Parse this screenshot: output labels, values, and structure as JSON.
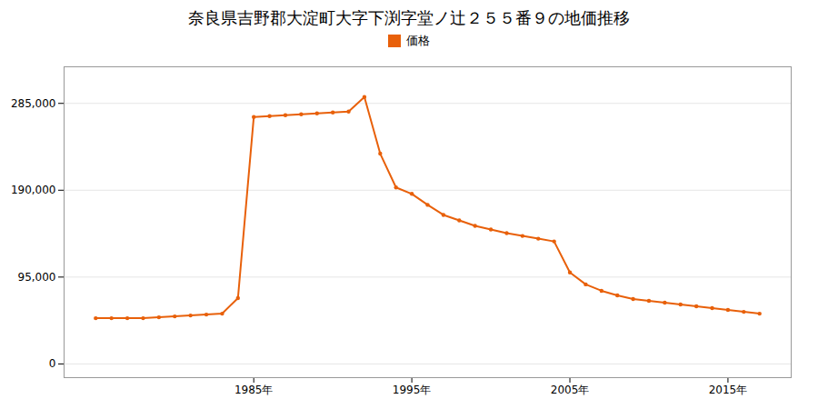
{
  "chart_data": {
    "type": "line",
    "title": "奈良県吉野郡大淀町大字下渕字堂ノ辻２５５番９の地価推移",
    "x": [
      1975,
      1976,
      1977,
      1978,
      1979,
      1980,
      1981,
      1982,
      1983,
      1984,
      1985,
      1986,
      1987,
      1988,
      1989,
      1990,
      1991,
      1992,
      1993,
      1994,
      1995,
      1996,
      1997,
      1998,
      1999,
      2000,
      2001,
      2002,
      2003,
      2004,
      2005,
      2006,
      2007,
      2008,
      2009,
      2010,
      2011,
      2012,
      2013,
      2014,
      2015,
      2016,
      2017
    ],
    "series": [
      {
        "name": "価格",
        "color": "#E8600A",
        "marker": "circle",
        "values": [
          50000,
          50000,
          50000,
          50000,
          51000,
          52000,
          53000,
          54000,
          55000,
          72000,
          270000,
          271000,
          272000,
          273000,
          274000,
          275000,
          276000,
          292000,
          230000,
          193000,
          186000,
          174000,
          163000,
          157000,
          151000,
          147000,
          143000,
          140000,
          137000,
          134000,
          100000,
          87000,
          80000,
          75000,
          71000,
          69000,
          67000,
          65000,
          63000,
          61000,
          59000,
          57000,
          55000
        ]
      }
    ],
    "xlim": [
      1973,
      2019
    ],
    "xticks": [
      {
        "value": 1985,
        "label": "1985年"
      },
      {
        "value": 1995,
        "label": "1995年"
      },
      {
        "value": 2005,
        "label": "2005年"
      },
      {
        "value": 2015,
        "label": "2015年"
      }
    ],
    "ylim": [
      -15000,
      325000
    ],
    "yticks": [
      0,
      {
        "value": 95000,
        "label": "95,000"
      },
      {
        "value": 190000,
        "label": "190,000"
      },
      {
        "value": 285000,
        "label": "285,000"
      }
    ],
    "grid": "y",
    "legend": "top"
  }
}
